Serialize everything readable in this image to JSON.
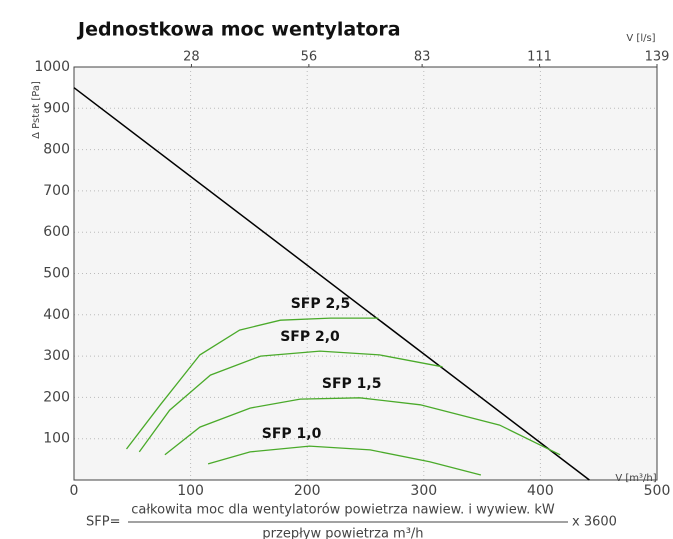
{
  "chart_data": {
    "type": "line",
    "title": "Jednostkowa moc wentylatora",
    "ylabel": "Δ Pstat [Pa]",
    "xlabel": "V [m³/h]",
    "x2label": "V [l/s]",
    "xlim": [
      0,
      500
    ],
    "xticks": [
      0,
      100,
      200,
      300,
      400,
      500
    ],
    "ylim": [
      0,
      1000
    ],
    "yticks": [
      100,
      200,
      300,
      400,
      500,
      600,
      700,
      800,
      900,
      1000
    ],
    "x2lim": [
      0,
      139
    ],
    "x2ticks": [
      28,
      56,
      83,
      111,
      139
    ],
    "grid": true,
    "series": [
      {
        "color": "#000000",
        "x": [
          0,
          442
        ],
        "values": [
          950,
          0
        ]
      },
      {
        "name": "SFP 2,5",
        "color": "#4aaa2a",
        "x": [
          45,
          74,
          108,
          142,
          177,
          220,
          261
        ],
        "values": [
          75,
          182,
          303,
          363,
          387,
          392,
          392
        ]
      },
      {
        "name": "SFP 2,0",
        "color": "#4aaa2a",
        "x": [
          56,
          82,
          117,
          160,
          211,
          262,
          316
        ],
        "values": [
          68,
          169,
          254,
          300,
          312,
          303,
          274
        ]
      },
      {
        "name": "SFP 1,5",
        "color": "#4aaa2a",
        "x": [
          78,
          108,
          151,
          194,
          245,
          297,
          365,
          417
        ],
        "values": [
          61,
          128,
          174,
          196,
          199,
          182,
          133,
          61
        ]
      },
      {
        "name": "SFP 1,0",
        "color": "#4aaa2a",
        "x": [
          115,
          151,
          202,
          254,
          305,
          349
        ],
        "values": [
          39,
          68,
          82,
          73,
          44,
          12
        ]
      }
    ],
    "formula": {
      "prefix": "SFP=",
      "numerator": "całkowita moc dla wentylatorów powietrza nawiew. i wywiew. kW",
      "denominator": "przepływ powietrza m³/h",
      "suffix": "x 3600"
    }
  }
}
